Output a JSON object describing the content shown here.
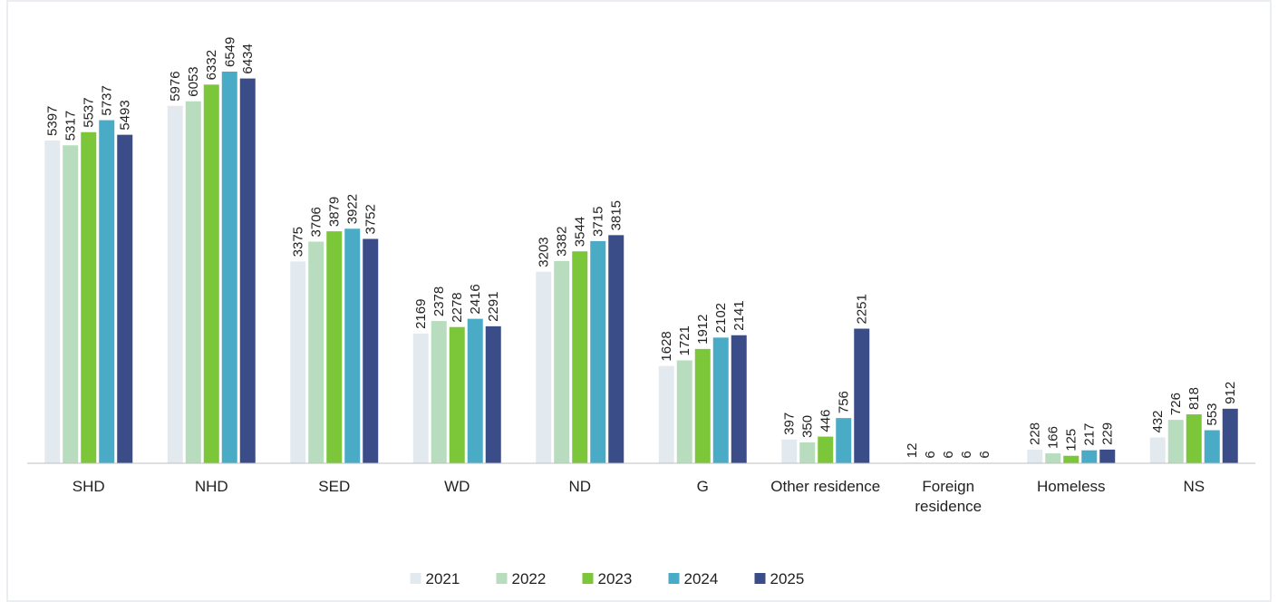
{
  "chart_data": {
    "type": "bar",
    "categories": [
      "SHD",
      "NHD",
      "SED",
      "WD",
      "ND",
      "G",
      "Other residence",
      "Foreign residence",
      "Homeless",
      "NS"
    ],
    "series": [
      {
        "name": "2021",
        "color": "#e3eaef",
        "values": [
          5397,
          5976,
          3375,
          2169,
          3203,
          1628,
          397,
          12,
          228,
          432
        ]
      },
      {
        "name": "2022",
        "color": "#b7dcbe",
        "values": [
          5317,
          6053,
          3706,
          2378,
          3382,
          1721,
          350,
          6,
          166,
          726
        ]
      },
      {
        "name": "2023",
        "color": "#7cc63a",
        "values": [
          5537,
          6332,
          3879,
          2278,
          3544,
          1912,
          446,
          6,
          125,
          818
        ]
      },
      {
        "name": "2024",
        "color": "#4aabc6",
        "values": [
          5737,
          6549,
          3922,
          2416,
          3715,
          2102,
          756,
          6,
          217,
          553
        ]
      },
      {
        "name": "2025",
        "color": "#3a4d89",
        "values": [
          5493,
          6434,
          3752,
          2291,
          3815,
          2141,
          2251,
          6,
          229,
          912
        ]
      }
    ],
    "legend": "bottom"
  }
}
